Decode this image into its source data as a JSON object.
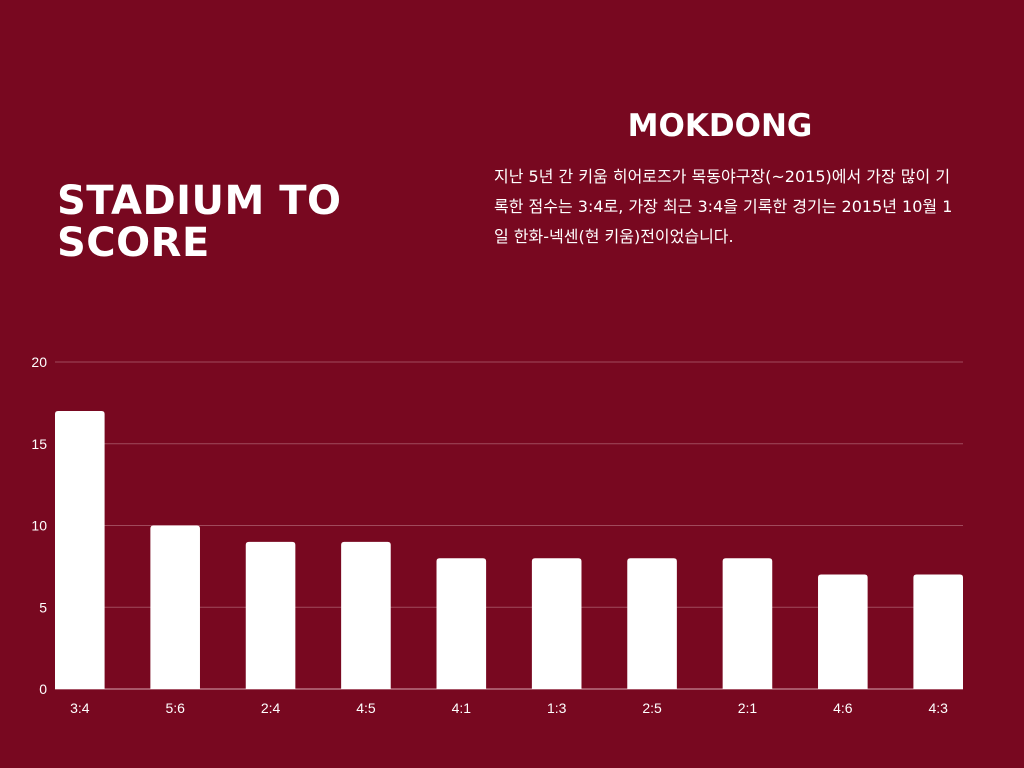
{
  "header": {
    "title": "STADIUM TO SCORE"
  },
  "info": {
    "heading": "MOKDONG",
    "description": "지난 5년 간 키움 히어로즈가 목동야구장(~2015)에서 가장 많이 기록한 점수는 3:4로, 가장 최근 3:4을 기록한 경기는 2015년 10월 1일 한화-넥센(현 키움)전이었습니다."
  },
  "colors": {
    "background": "#780820",
    "bar": "#ffffff",
    "gridline": "#a04a5c",
    "text": "#ffffff"
  },
  "chart_data": {
    "type": "bar",
    "categories": [
      "3:4",
      "5:6",
      "2:4",
      "4:5",
      "4:1",
      "1:3",
      "2:5",
      "2:1",
      "4:6",
      "4:3"
    ],
    "values": [
      17,
      10,
      9,
      9,
      8,
      8,
      8,
      8,
      7,
      7
    ],
    "yticks": [
      0,
      5,
      10,
      15,
      20
    ],
    "ylim": [
      0,
      20
    ],
    "grid": true,
    "legend": "none"
  }
}
